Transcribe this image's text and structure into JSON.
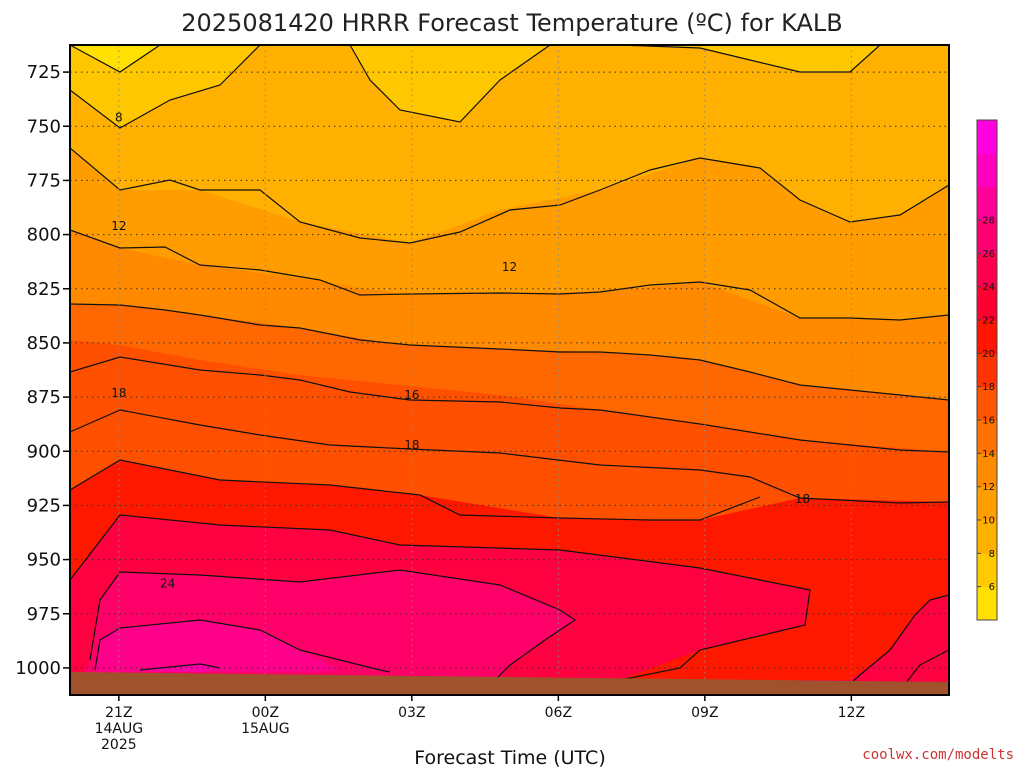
{
  "chart_data": {
    "type": "heatmap",
    "title": "2025081420 HRRR Forecast Temperature (ºC) for KALB",
    "xlabel": "Forecast Time (UTC)",
    "ylabel": "",
    "x_ticks": [
      {
        "hour": 0,
        "lines": [
          "21Z",
          "14AUG",
          "2025"
        ]
      },
      {
        "hour": 3,
        "lines": [
          "00Z",
          "15AUG"
        ]
      },
      {
        "hour": 6,
        "lines": [
          "03Z"
        ]
      },
      {
        "hour": 9,
        "lines": [
          "06Z"
        ]
      },
      {
        "hour": 12,
        "lines": [
          "09Z"
        ]
      },
      {
        "hour": 15,
        "lines": [
          "12Z"
        ]
      }
    ],
    "x_range_hours": [
      -1,
      17
    ],
    "y_ticks": [
      725,
      750,
      775,
      800,
      825,
      850,
      875,
      900,
      925,
      950,
      975,
      1000
    ],
    "y_range_hPa": [
      712.5,
      1012.5
    ],
    "colorbar": {
      "colors": [
        "#ffe000",
        "#ffca00",
        "#ffb100",
        "#ff9e00",
        "#ff8c00",
        "#ff7200",
        "#ff5400",
        "#ff3300",
        "#ff1500",
        "#ff0030",
        "#ff004e",
        "#ff0070",
        "#ff0098",
        "#ff00c0",
        "#ff00e0"
      ],
      "tick_labels": [
        "6",
        "8",
        "10",
        "12",
        "14",
        "16",
        "18",
        "20",
        "22",
        "24",
        "26",
        "28"
      ]
    },
    "contour_labels": [
      {
        "text": "8",
        "hour": 0.0,
        "p": 746
      },
      {
        "text": "12",
        "hour": 0.0,
        "p": 796
      },
      {
        "text": "12",
        "hour": 8.0,
        "p": 815
      },
      {
        "text": "16",
        "hour": 6.0,
        "p": 874
      },
      {
        "text": "18",
        "hour": 0.0,
        "p": 873
      },
      {
        "text": "18",
        "hour": 6.0,
        "p": 897
      },
      {
        "text": "18",
        "hour": 14.0,
        "p": 922
      },
      {
        "text": "24",
        "hour": 1.0,
        "p": 961
      }
    ],
    "credit": "coolwx.com/modelts"
  }
}
